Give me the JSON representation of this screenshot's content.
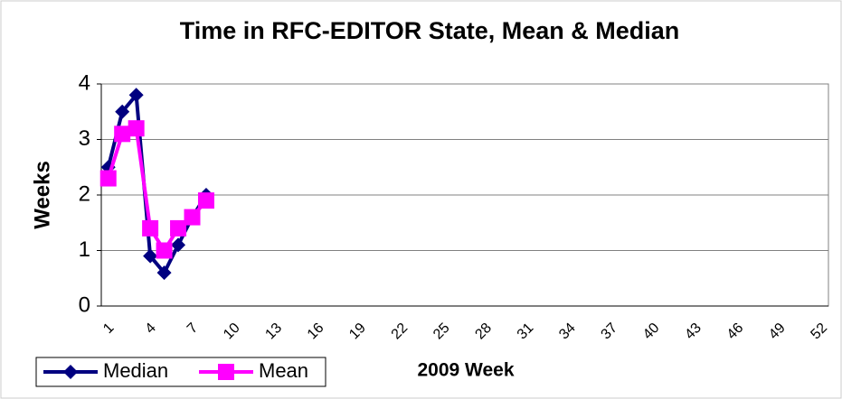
{
  "chart_data": {
    "type": "line",
    "title": "Time in RFC-EDITOR State, Mean & Median",
    "x_label": "2009 Week",
    "y_label": "Weeks",
    "categories": [
      1,
      null,
      null,
      4,
      null,
      null,
      7,
      null,
      null,
      10,
      null,
      null,
      13,
      null,
      null,
      16,
      null,
      null,
      19,
      null,
      null,
      22,
      null,
      null,
      25,
      null,
      null,
      28,
      null,
      null,
      31,
      null,
      null,
      34,
      null,
      null,
      37,
      null,
      null,
      40,
      null,
      null,
      43,
      null,
      null,
      46,
      null,
      null,
      49,
      null,
      null,
      52
    ],
    "series": [
      {
        "name": "Median",
        "color": "#000080",
        "marker": "diamond",
        "values": [
          2.5,
          3.5,
          3.8,
          0.9,
          0.6,
          1.1,
          1.6,
          2.0,
          null,
          null,
          null,
          null,
          null,
          null,
          null,
          null,
          null,
          null,
          null,
          null,
          null,
          null,
          null,
          null,
          null,
          null,
          null,
          null,
          null,
          null,
          null,
          null,
          null,
          null,
          null,
          null,
          null,
          null,
          null,
          null,
          null,
          null,
          null,
          null,
          null,
          null,
          null,
          null,
          null,
          null,
          null,
          null
        ]
      },
      {
        "name": "Mean",
        "color": "#ff00ff",
        "marker": "square",
        "values": [
          2.3,
          3.1,
          3.2,
          1.4,
          1.0,
          1.4,
          1.6,
          1.9,
          null,
          null,
          null,
          null,
          null,
          null,
          null,
          null,
          null,
          null,
          null,
          null,
          null,
          null,
          null,
          null,
          null,
          null,
          null,
          null,
          null,
          null,
          null,
          null,
          null,
          null,
          null,
          null,
          null,
          null,
          null,
          null,
          null,
          null,
          null,
          null,
          null,
          null,
          null,
          null,
          null,
          null,
          null,
          null
        ]
      }
    ],
    "ylim": [
      0,
      4
    ],
    "yticks": [
      0,
      1,
      2,
      3,
      4
    ],
    "grid": true,
    "legend": "bottom-left"
  }
}
